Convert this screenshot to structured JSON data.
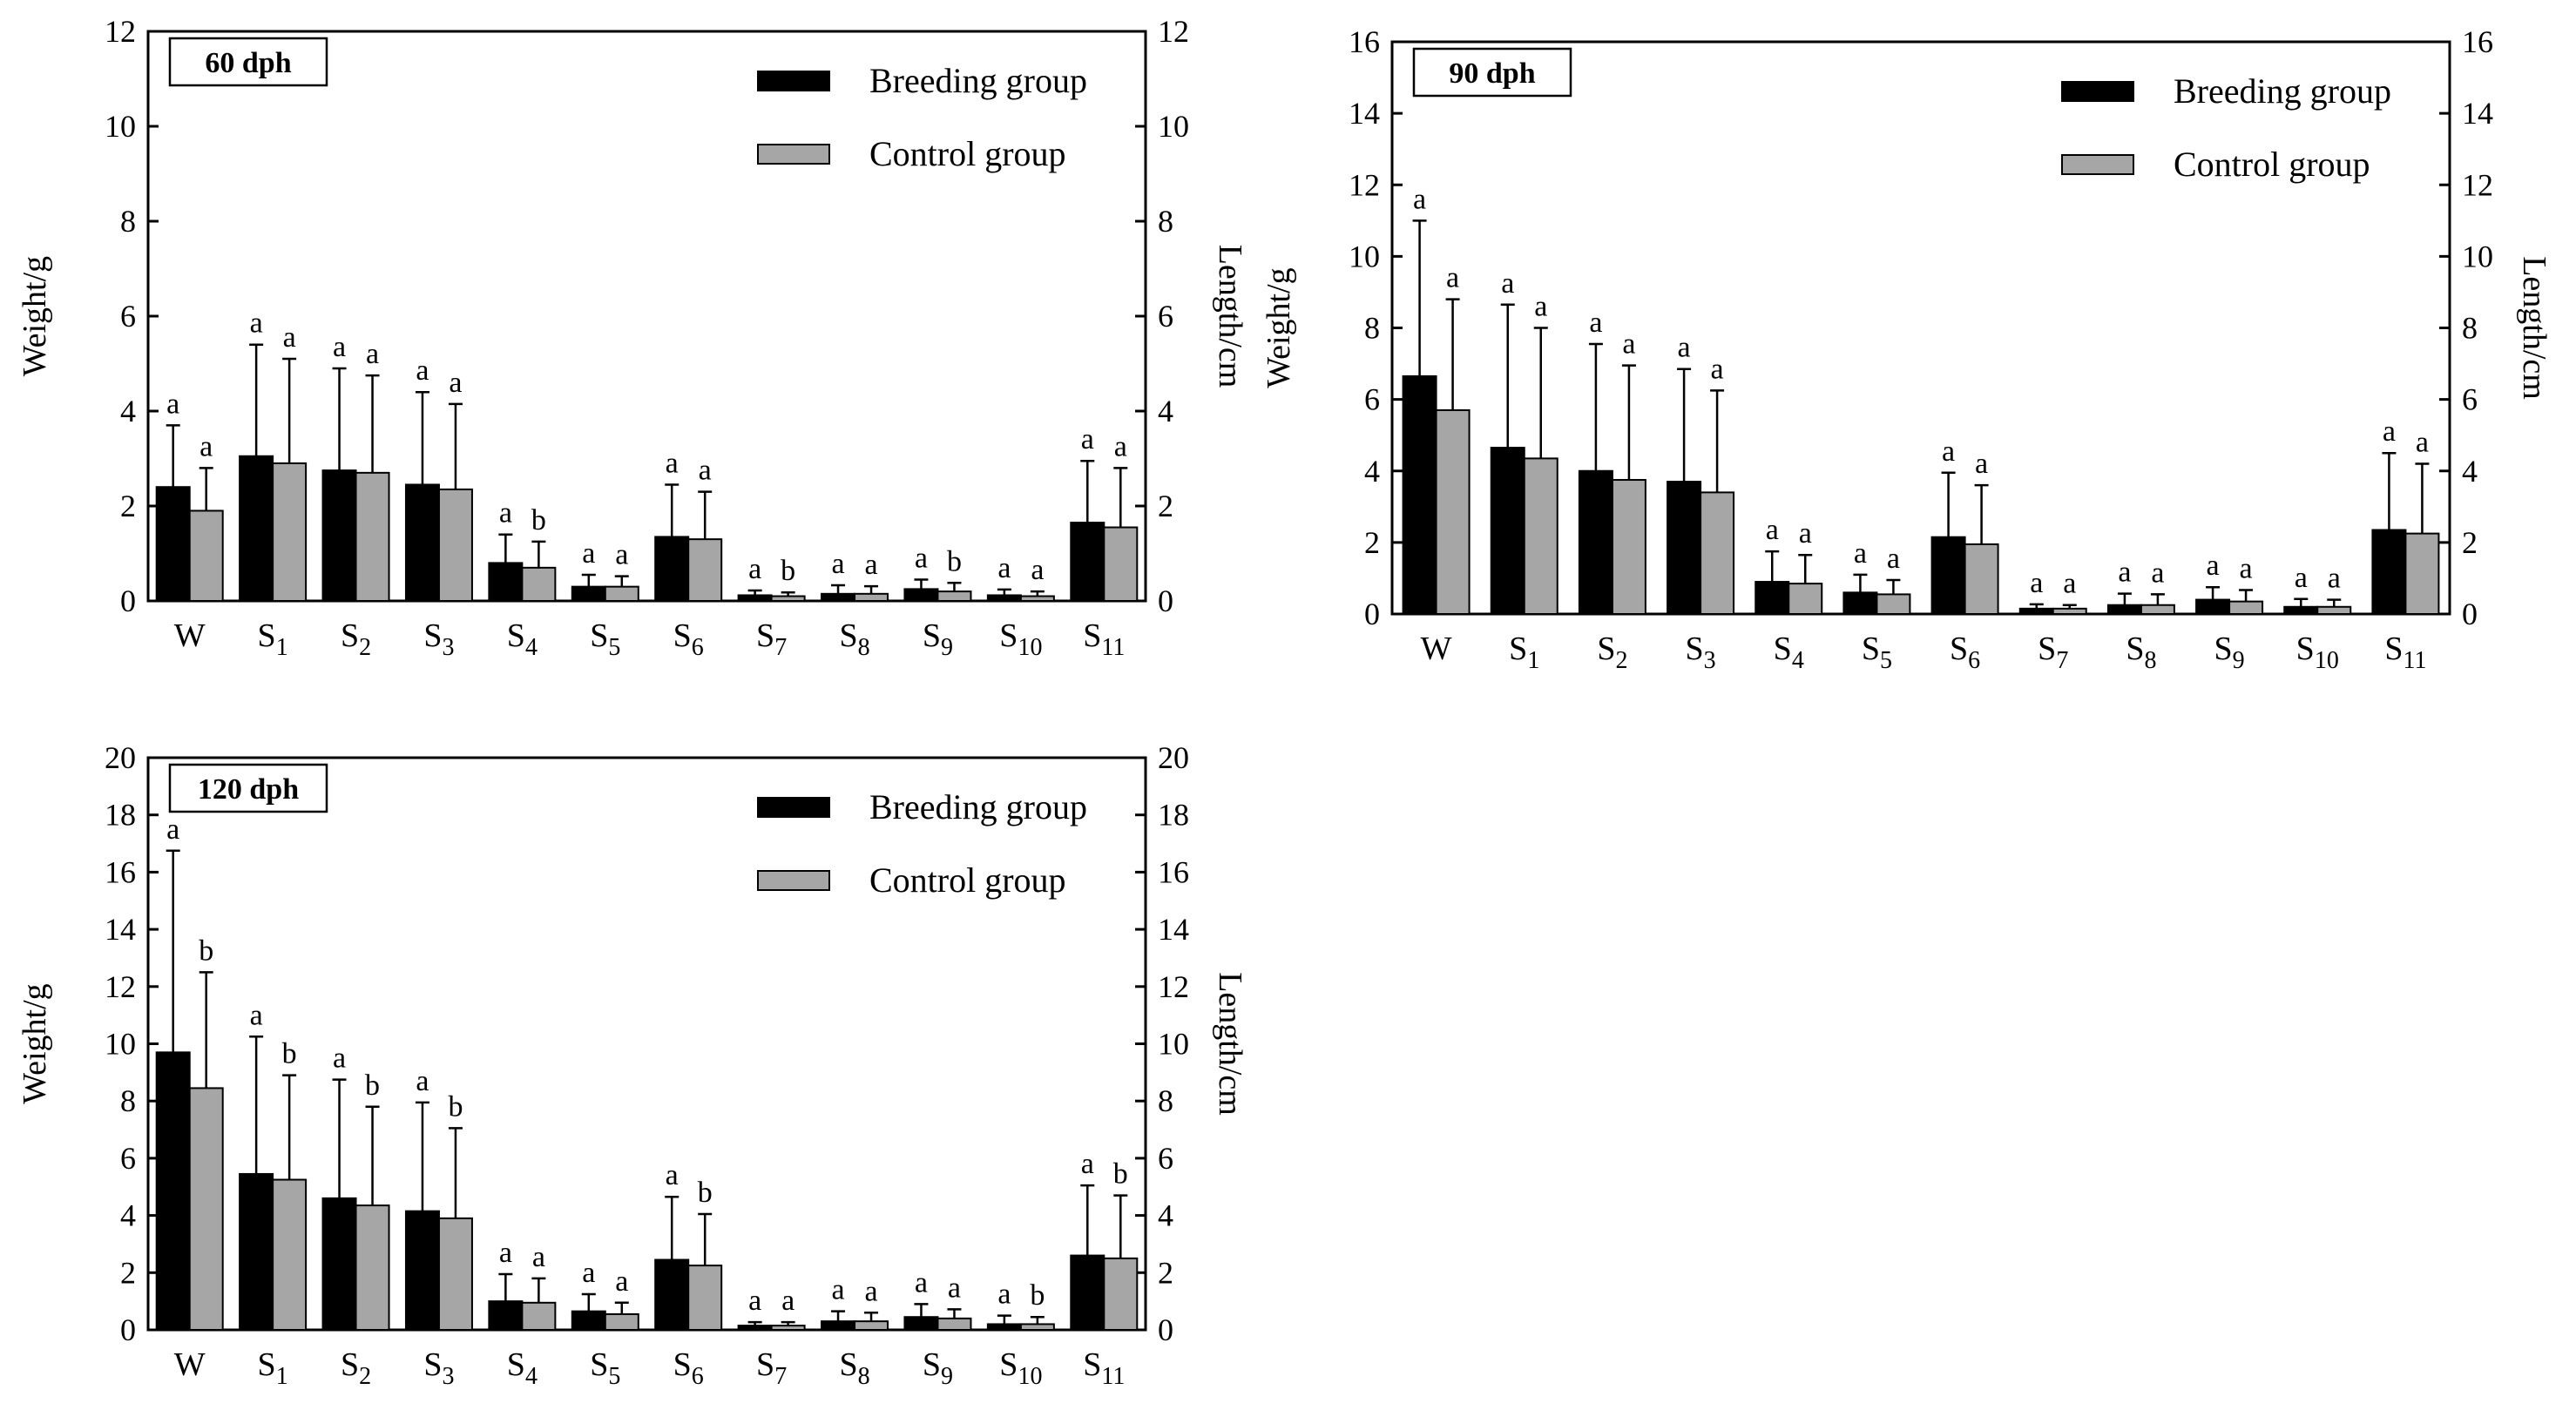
{
  "legend": {
    "breeding": "Breeding group",
    "control": "Control group"
  },
  "colors": {
    "breeding": "#000000",
    "control": "#a6a6a6"
  },
  "chart_data": [
    {
      "type": "bar",
      "title": "60 dph",
      "ylabel_left": "Weight/g",
      "ylabel_right": "Length/cm",
      "ylim": [
        0,
        12
      ],
      "yticks": [
        0,
        2,
        4,
        6,
        8,
        10,
        12
      ],
      "categories": [
        "W",
        "S1",
        "S2",
        "S3",
        "S4",
        "S5",
        "S6",
        "S7",
        "S8",
        "S9",
        "S10",
        "S11"
      ],
      "series": [
        {
          "name": "Breeding group",
          "values": [
            2.4,
            3.05,
            2.75,
            2.45,
            0.8,
            0.3,
            1.35,
            0.12,
            0.15,
            0.25,
            0.12,
            1.65
          ],
          "errors": [
            1.3,
            2.35,
            2.15,
            1.95,
            0.6,
            0.25,
            1.1,
            0.1,
            0.18,
            0.2,
            0.12,
            1.3
          ],
          "letters": [
            "a",
            "a",
            "a",
            "a",
            "a",
            "a",
            "a",
            "a",
            "a",
            "a",
            "a",
            "a"
          ]
        },
        {
          "name": "Control group",
          "values": [
            1.9,
            2.9,
            2.7,
            2.35,
            0.7,
            0.3,
            1.3,
            0.1,
            0.15,
            0.2,
            0.1,
            1.55
          ],
          "errors": [
            0.9,
            2.2,
            2.05,
            1.8,
            0.55,
            0.22,
            1.0,
            0.08,
            0.16,
            0.18,
            0.1,
            1.25
          ],
          "letters": [
            "a",
            "a",
            "a",
            "a",
            "b",
            "a",
            "a",
            "b",
            "a",
            "b",
            "a",
            "a"
          ]
        }
      ]
    },
    {
      "type": "bar",
      "title": "90 dph",
      "ylabel_left": "Weight/g",
      "ylabel_right": "Length/cm",
      "ylim": [
        0,
        16
      ],
      "yticks": [
        0,
        2,
        4,
        6,
        8,
        10,
        12,
        14,
        16
      ],
      "categories": [
        "W",
        "S1",
        "S2",
        "S3",
        "S4",
        "S5",
        "S6",
        "S7",
        "S8",
        "S9",
        "S10",
        "S11"
      ],
      "series": [
        {
          "name": "Breeding group",
          "values": [
            6.65,
            4.65,
            4.0,
            3.7,
            0.9,
            0.6,
            2.15,
            0.15,
            0.25,
            0.4,
            0.2,
            2.35
          ],
          "errors": [
            4.35,
            4.0,
            3.55,
            3.15,
            0.85,
            0.5,
            1.8,
            0.12,
            0.32,
            0.35,
            0.22,
            2.15
          ],
          "letters": [
            "a",
            "a",
            "a",
            "a",
            "a",
            "a",
            "a",
            "a",
            "a",
            "a",
            "a",
            "a"
          ]
        },
        {
          "name": "Control group",
          "values": [
            5.7,
            4.35,
            3.75,
            3.4,
            0.85,
            0.55,
            1.95,
            0.15,
            0.25,
            0.35,
            0.2,
            2.25
          ],
          "errors": [
            3.1,
            3.65,
            3.2,
            2.85,
            0.8,
            0.4,
            1.65,
            0.1,
            0.3,
            0.32,
            0.2,
            1.95
          ],
          "letters": [
            "a",
            "a",
            "a",
            "a",
            "a",
            "a",
            "a",
            "a",
            "a",
            "a",
            "a",
            "a"
          ]
        }
      ]
    },
    {
      "type": "bar",
      "title": "120 dph",
      "ylabel_left": "Weight/g",
      "ylabel_right": "Length/cm",
      "ylim": [
        0,
        20
      ],
      "yticks": [
        0,
        2,
        4,
        6,
        8,
        10,
        12,
        14,
        16,
        18,
        20
      ],
      "categories": [
        "W",
        "S1",
        "S2",
        "S3",
        "S4",
        "S5",
        "S6",
        "S7",
        "S8",
        "S9",
        "S10",
        "S11"
      ],
      "series": [
        {
          "name": "Breeding group",
          "values": [
            9.7,
            5.45,
            4.6,
            4.15,
            1.0,
            0.65,
            2.45,
            0.15,
            0.3,
            0.45,
            0.2,
            2.6
          ],
          "errors": [
            7.05,
            4.8,
            4.15,
            3.8,
            0.95,
            0.6,
            2.2,
            0.12,
            0.35,
            0.45,
            0.3,
            2.45
          ],
          "letters": [
            "a",
            "a",
            "a",
            "a",
            "a",
            "a",
            "a",
            "a",
            "a",
            "a",
            "a",
            "a"
          ]
        },
        {
          "name": "Control group",
          "values": [
            8.45,
            5.25,
            4.35,
            3.9,
            0.95,
            0.55,
            2.25,
            0.15,
            0.3,
            0.4,
            0.2,
            2.5
          ],
          "errors": [
            4.05,
            3.65,
            3.45,
            3.15,
            0.85,
            0.4,
            1.8,
            0.12,
            0.3,
            0.32,
            0.25,
            2.2
          ],
          "letters": [
            "b",
            "b",
            "b",
            "b",
            "a",
            "a",
            "b",
            "a",
            "a",
            "a",
            "b",
            "b"
          ]
        }
      ]
    }
  ]
}
